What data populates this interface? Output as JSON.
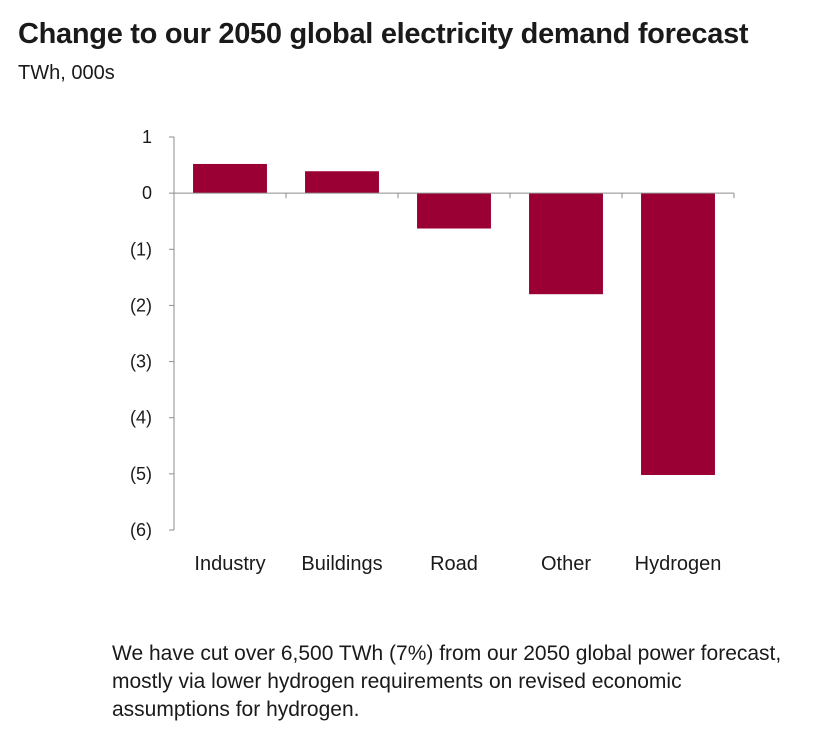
{
  "chart_data": {
    "type": "bar",
    "title": "Change to our 2050 global electricity demand forecast",
    "subtitle": "TWh, 000s",
    "categories": [
      "Industry",
      "Buildings",
      "Road",
      "Other",
      "Hydrogen"
    ],
    "values": [
      0.52,
      0.39,
      -0.63,
      -1.8,
      -5.02
    ],
    "ylim": [
      -6,
      1
    ],
    "yticks": [
      1,
      0,
      -1,
      -2,
      -3,
      -4,
      -5,
      -6
    ],
    "ytick_labels": [
      "1",
      "0",
      "(1)",
      "(2)",
      "(3)",
      "(4)",
      "(5)",
      "(6)"
    ],
    "bar_color": "#9b0034",
    "grid": false
  },
  "note": "We have cut over 6,500 TWh (7%) from our 2050 global power forecast, mostly via lower hydrogen requirements on revised economic assumptions for hydrogen."
}
